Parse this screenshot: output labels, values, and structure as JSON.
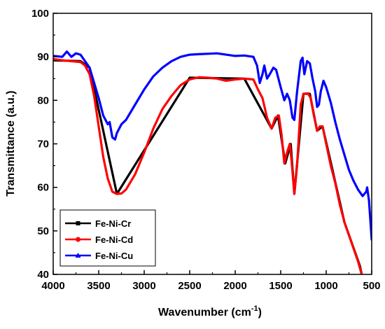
{
  "chart_data": {
    "type": "line",
    "xlabel": "Wavenumber (cm",
    "xlabel_superscript": "-1",
    "xlabel_suffix": ")",
    "ylabel": "Transmittance (a.u.)",
    "xlim": [
      4000,
      500
    ],
    "ylim": [
      40,
      100
    ],
    "x_reversed": true,
    "x_ticks": [
      4000,
      3500,
      3000,
      2500,
      2000,
      1500,
      1000,
      500
    ],
    "y_ticks": [
      40,
      50,
      60,
      70,
      80,
      90,
      100
    ],
    "grid": false,
    "legend_position": "bottom-left",
    "series": [
      {
        "name": "Fe-Ni-Cr",
        "color": "#000000",
        "marker": "square",
        "points": [
          [
            4000,
            89.2
          ],
          [
            3700,
            89.0
          ],
          [
            3600,
            87.5
          ],
          [
            3300,
            58.5
          ],
          [
            2500,
            85.2
          ],
          [
            1900,
            85.0
          ],
          [
            1600,
            73.5
          ],
          [
            1530,
            76.5
          ],
          [
            1450,
            65.5
          ],
          [
            1390,
            70.0
          ],
          [
            1350,
            58.5
          ],
          [
            1250,
            81.5
          ],
          [
            1180,
            81.5
          ],
          [
            1100,
            73.0
          ],
          [
            1040,
            74.0
          ],
          [
            800,
            52.0
          ],
          [
            630,
            42.0
          ],
          [
            610,
            40.0
          ]
        ]
      },
      {
        "name": "Fe-Ni-Cd",
        "color": "#ff0000",
        "marker": "circle",
        "points": [
          [
            4000,
            89.5
          ],
          [
            3900,
            89.2
          ],
          [
            3800,
            89.0
          ],
          [
            3700,
            88.8
          ],
          [
            3650,
            88.0
          ],
          [
            3600,
            86.0
          ],
          [
            3550,
            81.0
          ],
          [
            3500,
            74.0
          ],
          [
            3450,
            67.0
          ],
          [
            3400,
            62.0
          ],
          [
            3350,
            59.0
          ],
          [
            3300,
            58.5
          ],
          [
            3250,
            58.6
          ],
          [
            3200,
            59.5
          ],
          [
            3100,
            63.0
          ],
          [
            3000,
            68.0
          ],
          [
            2900,
            73.5
          ],
          [
            2800,
            78.0
          ],
          [
            2700,
            81.0
          ],
          [
            2600,
            83.5
          ],
          [
            2500,
            84.8
          ],
          [
            2400,
            85.3
          ],
          [
            2300,
            85.2
          ],
          [
            2200,
            85.0
          ],
          [
            2100,
            84.5
          ],
          [
            2000,
            84.8
          ],
          [
            1900,
            85.0
          ],
          [
            1800,
            84.8
          ],
          [
            1750,
            82.5
          ],
          [
            1700,
            80.5
          ],
          [
            1650,
            76.0
          ],
          [
            1600,
            73.5
          ],
          [
            1560,
            76.0
          ],
          [
            1520,
            76.5
          ],
          [
            1490,
            72.0
          ],
          [
            1460,
            65.5
          ],
          [
            1430,
            68.0
          ],
          [
            1400,
            70.0
          ],
          [
            1380,
            66.0
          ],
          [
            1350,
            58.5
          ],
          [
            1320,
            65.0
          ],
          [
            1280,
            79.0
          ],
          [
            1250,
            81.5
          ],
          [
            1200,
            81.6
          ],
          [
            1170,
            80.5
          ],
          [
            1140,
            77.0
          ],
          [
            1100,
            73.0
          ],
          [
            1070,
            74.0
          ],
          [
            1040,
            74.0
          ],
          [
            1000,
            70.0
          ],
          [
            950,
            65.0
          ],
          [
            900,
            61.0
          ],
          [
            850,
            56.0
          ],
          [
            800,
            52.0
          ],
          [
            750,
            49.0
          ],
          [
            700,
            46.0
          ],
          [
            650,
            43.0
          ],
          [
            610,
            40.0
          ]
        ]
      },
      {
        "name": "Fe-Ni-Cu",
        "color": "#0000ff",
        "marker": "triangle",
        "points": [
          [
            4000,
            90.2
          ],
          [
            3900,
            90.0
          ],
          [
            3850,
            91.2
          ],
          [
            3800,
            90.0
          ],
          [
            3750,
            90.8
          ],
          [
            3700,
            90.5
          ],
          [
            3650,
            89.0
          ],
          [
            3600,
            87.5
          ],
          [
            3550,
            84.0
          ],
          [
            3500,
            80.5
          ],
          [
            3450,
            76.5
          ],
          [
            3400,
            74.5
          ],
          [
            3380,
            75.0
          ],
          [
            3350,
            71.5
          ],
          [
            3320,
            71.0
          ],
          [
            3300,
            72.5
          ],
          [
            3250,
            74.5
          ],
          [
            3200,
            75.5
          ],
          [
            3100,
            79.0
          ],
          [
            3000,
            82.5
          ],
          [
            2900,
            85.5
          ],
          [
            2800,
            87.5
          ],
          [
            2700,
            89.0
          ],
          [
            2600,
            90.0
          ],
          [
            2500,
            90.5
          ],
          [
            2400,
            90.6
          ],
          [
            2300,
            90.7
          ],
          [
            2200,
            90.8
          ],
          [
            2100,
            90.5
          ],
          [
            2000,
            90.2
          ],
          [
            1900,
            90.3
          ],
          [
            1800,
            90.0
          ],
          [
            1760,
            88.0
          ],
          [
            1730,
            84.0
          ],
          [
            1700,
            86.0
          ],
          [
            1680,
            88.0
          ],
          [
            1650,
            85.0
          ],
          [
            1620,
            86.0
          ],
          [
            1580,
            87.5
          ],
          [
            1550,
            87.0
          ],
          [
            1500,
            83.0
          ],
          [
            1460,
            80.0
          ],
          [
            1430,
            81.5
          ],
          [
            1400,
            80.0
          ],
          [
            1370,
            76.0
          ],
          [
            1350,
            75.5
          ],
          [
            1320,
            82.0
          ],
          [
            1280,
            89.0
          ],
          [
            1260,
            89.8
          ],
          [
            1240,
            86.0
          ],
          [
            1210,
            89.0
          ],
          [
            1180,
            88.5
          ],
          [
            1150,
            85.0
          ],
          [
            1120,
            82.0
          ],
          [
            1100,
            78.5
          ],
          [
            1080,
            79.0
          ],
          [
            1060,
            82.0
          ],
          [
            1030,
            84.5
          ],
          [
            1000,
            83.0
          ],
          [
            950,
            79.5
          ],
          [
            900,
            75.0
          ],
          [
            850,
            71.0
          ],
          [
            800,
            67.5
          ],
          [
            750,
            64.0
          ],
          [
            700,
            61.5
          ],
          [
            650,
            59.5
          ],
          [
            600,
            58.0
          ],
          [
            560,
            59.0
          ],
          [
            550,
            60.0
          ],
          [
            530,
            57.0
          ],
          [
            500,
            48.0
          ]
        ]
      }
    ]
  }
}
